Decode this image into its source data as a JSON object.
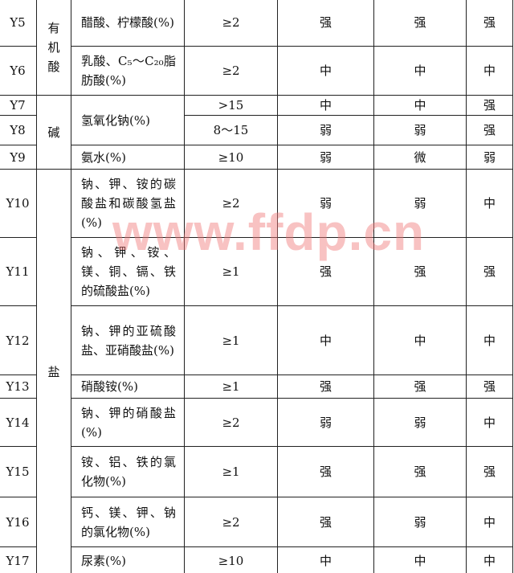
{
  "watermark": "www.ffdp.cn",
  "categories": {
    "organic_acid": "有机酸",
    "alkali": "碱",
    "salt": "盐"
  },
  "rows": [
    {
      "id": "Y5",
      "name": "醋酸、柠檬酸(%)",
      "conc": "≥2",
      "a": "强",
      "b": "强",
      "c": "强"
    },
    {
      "id": "Y6",
      "name": "乳酸、C₅～C₂₀脂肪酸(%)",
      "conc": "≥2",
      "a": "中",
      "b": "中",
      "c": "中"
    },
    {
      "id": "Y7",
      "name": "氢氧化钠(%)",
      "conc": ">15",
      "a": "中",
      "b": "中",
      "c": "强"
    },
    {
      "id": "Y8",
      "name": "",
      "conc": "8～15",
      "a": "弱",
      "b": "弱",
      "c": "强"
    },
    {
      "id": "Y9",
      "name": "氨水(%)",
      "conc": "≥10",
      "a": "弱",
      "b": "微",
      "c": "弱"
    },
    {
      "id": "Y10",
      "name": "钠、钾、铵的碳酸盐和碳酸氢盐(%)",
      "conc": "≥2",
      "a": "弱",
      "b": "弱",
      "c": "中"
    },
    {
      "id": "Y11",
      "name": "钠、钾、铵、镁、铜、镉、铁的硫酸盐(%)",
      "conc": "≥1",
      "a": "强",
      "b": "强",
      "c": "强"
    },
    {
      "id": "Y12",
      "name": "钠、钾的亚硫酸盐、亚硝酸盐(%)",
      "conc": "≥1",
      "a": "中",
      "b": "中",
      "c": "中"
    },
    {
      "id": "Y13",
      "name": "硝酸铵(%)",
      "conc": "≥1",
      "a": "强",
      "b": "强",
      "c": "强"
    },
    {
      "id": "Y14",
      "name": "钠、钾的硝酸盐(%)",
      "conc": "≥2",
      "a": "弱",
      "b": "弱",
      "c": "中"
    },
    {
      "id": "Y15",
      "name": "铵、铝、铁的氯化物(%)",
      "conc": "≥1",
      "a": "强",
      "b": "强",
      "c": "强"
    },
    {
      "id": "Y16",
      "name": "钙、镁、钾、钠的氯化物(%)",
      "conc": "≥2",
      "a": "强",
      "b": "弱",
      "c": "中"
    },
    {
      "id": "Y17",
      "name": "尿素(%)",
      "conc": "≥10",
      "a": "中",
      "b": "中",
      "c": "中"
    }
  ]
}
